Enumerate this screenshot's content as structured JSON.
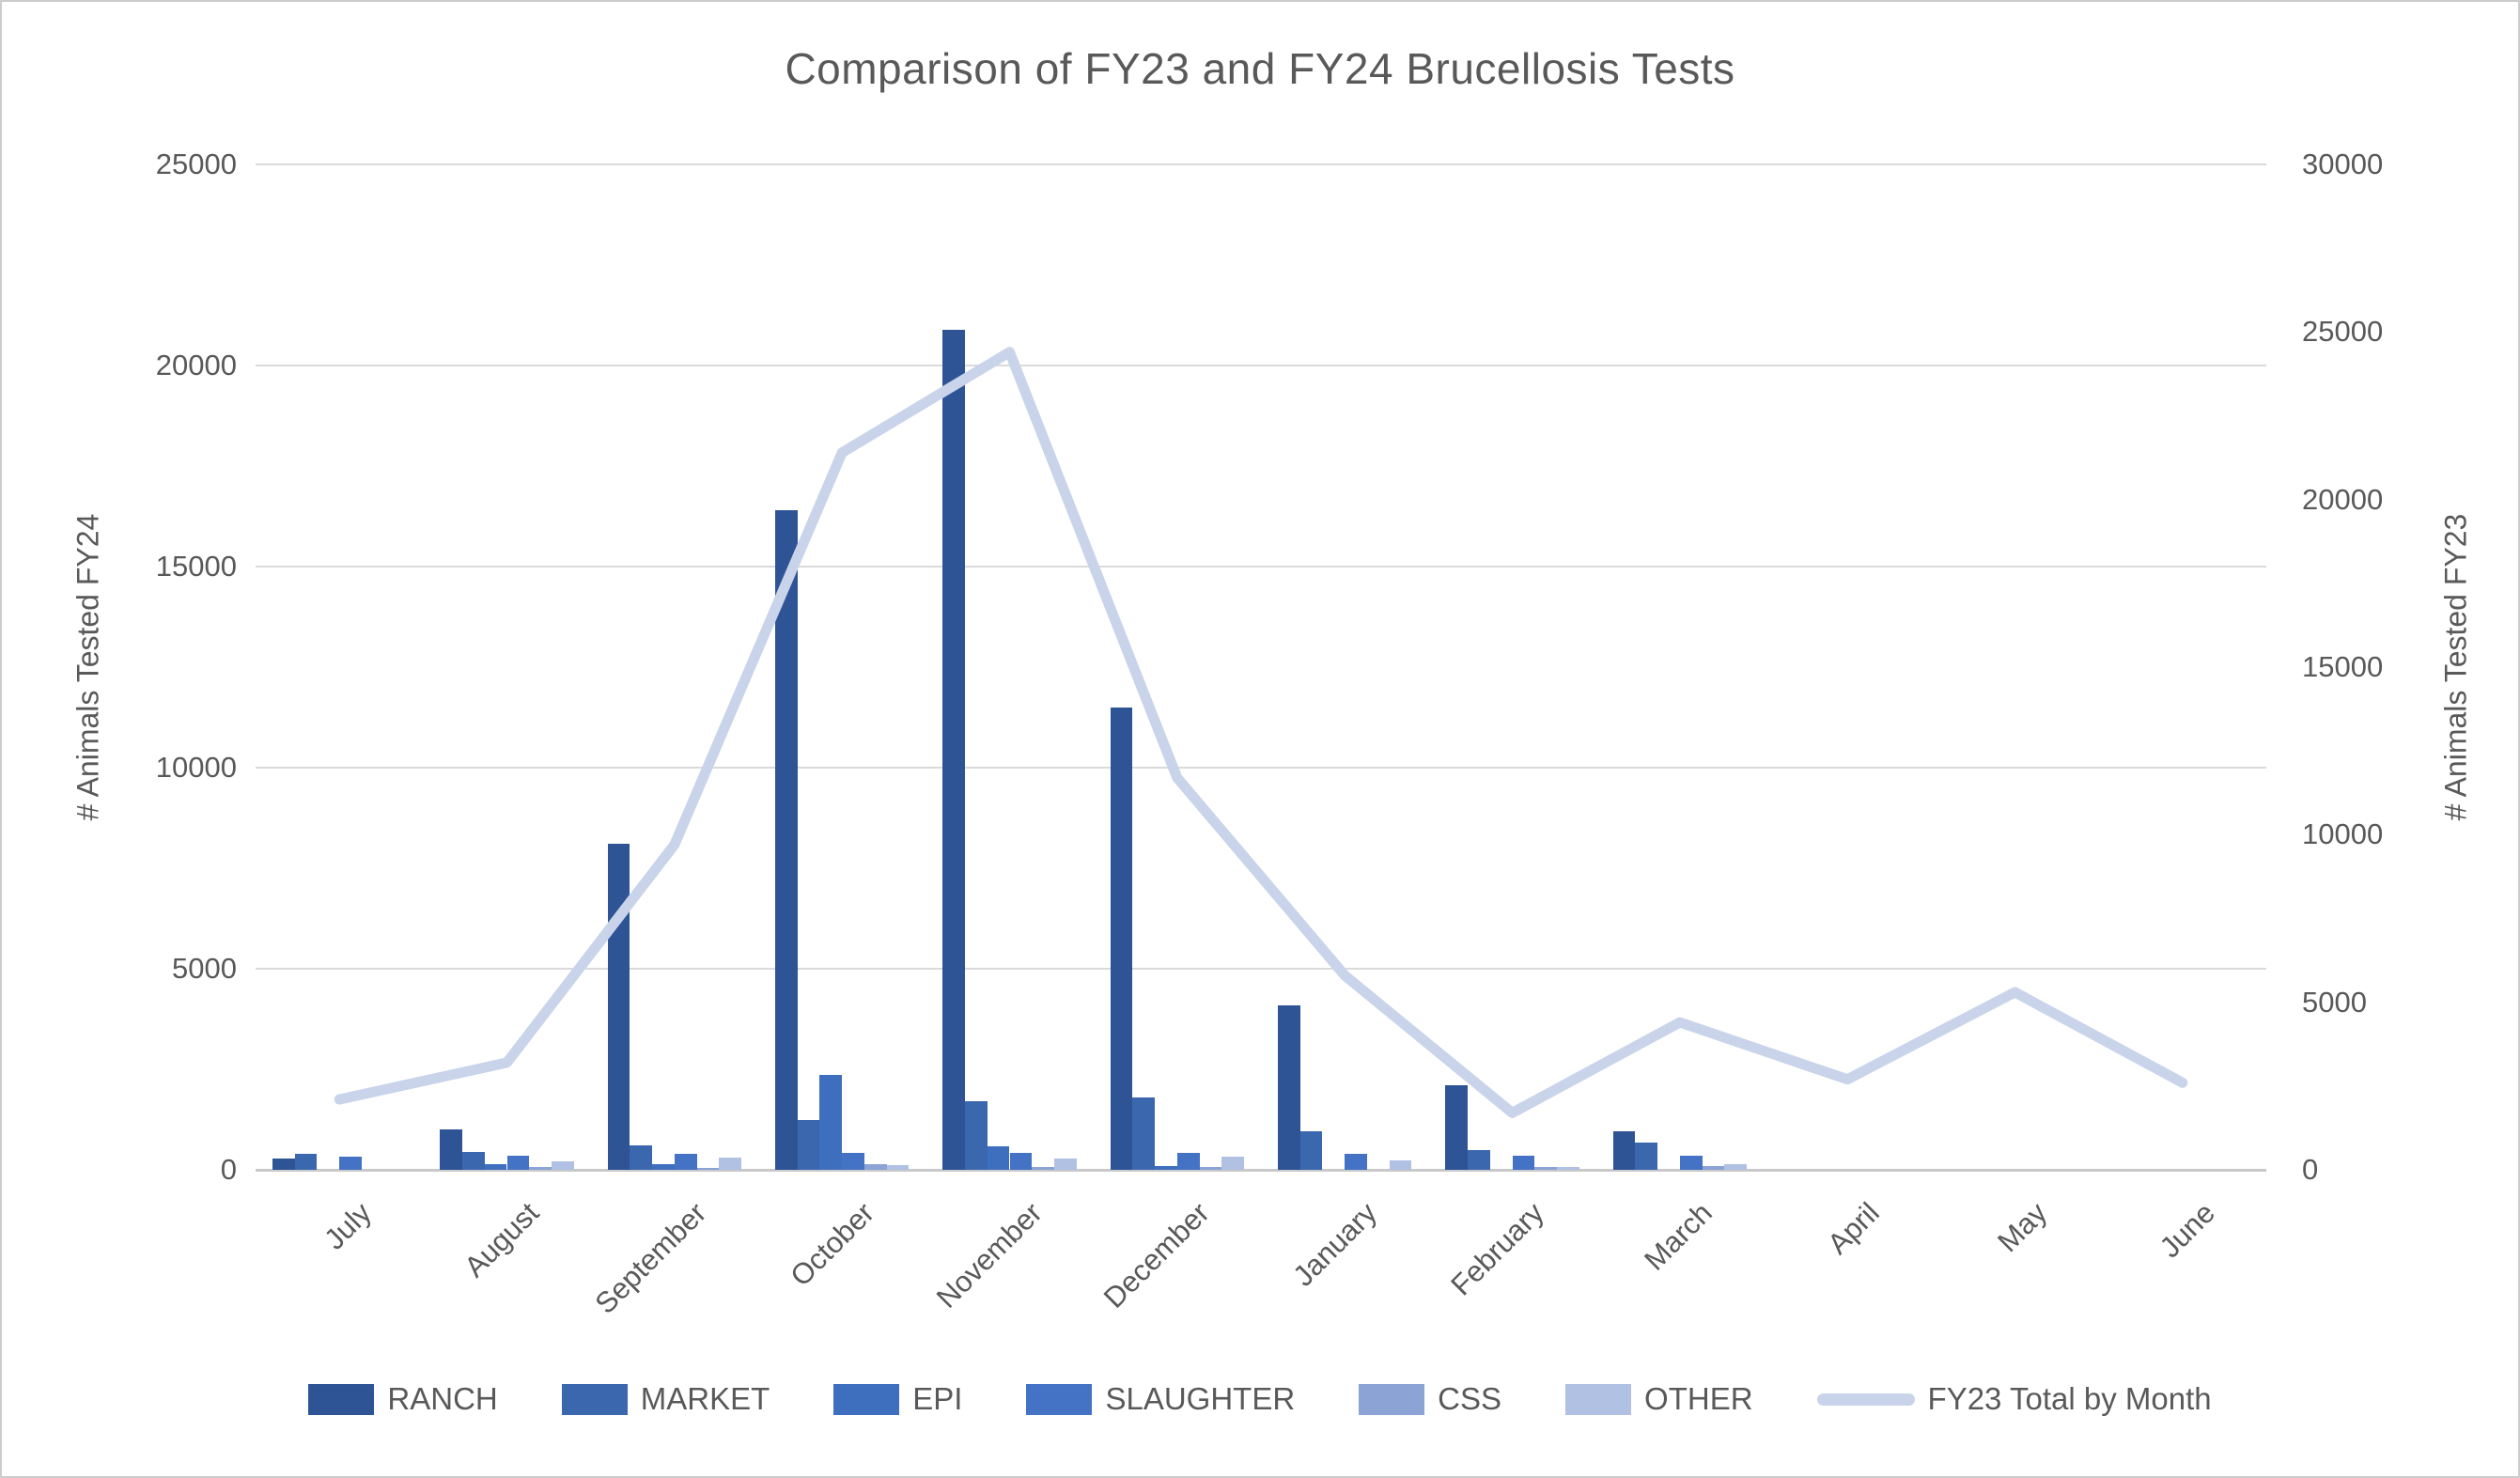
{
  "chart_data": {
    "type": "bar",
    "subtype": "grouped-bars-with-line-combo",
    "title": "Comparison of FY23 and FY24 Brucellosis Tests",
    "categories": [
      "July",
      "August",
      "September",
      "October",
      "November",
      "December",
      "January",
      "February",
      "March",
      "April",
      "May",
      "June"
    ],
    "series": [
      {
        "name": "RANCH",
        "color": "#2F5496",
        "values": [
          270,
          1000,
          8100,
          16400,
          20900,
          11500,
          4100,
          2100,
          950,
          0,
          0,
          0
        ]
      },
      {
        "name": "MARKET",
        "color": "#3A67AE",
        "values": [
          400,
          450,
          600,
          1230,
          1700,
          1800,
          950,
          500,
          690,
          0,
          0,
          0
        ]
      },
      {
        "name": "EPI",
        "color": "#3E6FBE",
        "values": [
          0,
          150,
          130,
          2350,
          580,
          100,
          0,
          0,
          0,
          0,
          0,
          0
        ]
      },
      {
        "name": "SLAUGHTER",
        "color": "#4472C4",
        "values": [
          330,
          360,
          410,
          430,
          430,
          430,
          400,
          350,
          360,
          0,
          0,
          0
        ]
      },
      {
        "name": "CSS",
        "color": "#8CA3D6",
        "values": [
          0,
          70,
          50,
          130,
          60,
          60,
          0,
          80,
          90,
          0,
          0,
          0
        ]
      },
      {
        "name": "OTHER",
        "color": "#B0C1E4",
        "values": [
          0,
          220,
          310,
          120,
          270,
          330,
          240,
          60,
          130,
          0,
          0,
          0
        ]
      }
    ],
    "line_series": {
      "name": "FY23 Total by Month",
      "color": "#C9D4EB",
      "axis": "right",
      "values": [
        2100,
        3200,
        9700,
        21400,
        24400,
        11700,
        5800,
        1700,
        4400,
        2700,
        5300,
        2600
      ]
    },
    "left_axis": {
      "title": "# Animals Tested FY24",
      "min": 0,
      "max": 25000,
      "step": 5000
    },
    "right_axis": {
      "title": "# Animals Tested FY23",
      "min": 0,
      "max": 30000,
      "step": 5000
    },
    "legend_position": "bottom",
    "grid": true,
    "styles": {
      "text_color": "#595959",
      "grid_color": "#DADADA",
      "baseline_color": "#C9C9C9",
      "background": "#FFFFFF",
      "border_color": "#CCCCCC"
    }
  }
}
